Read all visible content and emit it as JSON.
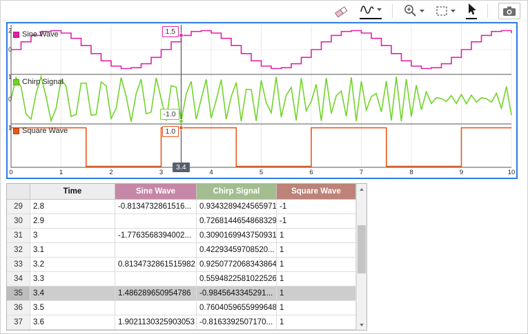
{
  "toolbar": {
    "buttons": [
      {
        "icon": "eraser-icon",
        "label": "Erase"
      },
      {
        "icon": "signal-trace-icon",
        "label": "Signal tool",
        "has_dropdown": true,
        "underlined": true
      },
      {
        "icon": "zoom-in-icon",
        "label": "Zoom",
        "has_dropdown": true
      },
      {
        "icon": "marquee-select-icon",
        "label": "Select region",
        "has_dropdown": true
      },
      {
        "icon": "pointer-icon",
        "label": "Pointer",
        "underlined": true
      },
      {
        "icon": "camera-icon",
        "label": "Snapshot"
      }
    ]
  },
  "plot": {
    "border_color": "#2f7ae5",
    "x_ticks": [
      0,
      1,
      2,
      3,
      4,
      5,
      6,
      7,
      8,
      9,
      10
    ],
    "cursor": {
      "time": 3.4,
      "time_label": "3.4",
      "readouts": [
        {
          "signal": "Sine Wave",
          "label": "1.5"
        },
        {
          "signal": "Chirp Signal",
          "label": "-1.0"
        },
        {
          "signal": "Square Wave",
          "label": "1.0"
        }
      ]
    }
  },
  "chart_data": [
    {
      "type": "line",
      "title": "Sine Wave",
      "color": "#e320a5",
      "line_style": "stair",
      "x_range": [
        0,
        10
      ],
      "y_range": [
        -2.6,
        2.6
      ],
      "y_ticks": [
        2,
        0
      ],
      "signal_model": {
        "kind": "sine",
        "amplitude": 2,
        "period": 3,
        "sample_time": 0.2
      },
      "cursor_value": 1.486289650954786
    },
    {
      "type": "line",
      "title": "Chirp Signal",
      "color": "#72d32a",
      "line_style": "linear",
      "x_range": [
        0,
        10
      ],
      "y_range": [
        -1.1,
        1.1
      ],
      "y_ticks": [
        1,
        0
      ],
      "signal_model": {
        "kind": "chirp",
        "f0": 2,
        "k": 0.3325,
        "sample_time": 0.1
      },
      "cursor_value": -0.9845643345291
    },
    {
      "type": "line",
      "title": "Square Wave",
      "color": "#e8571c",
      "line_style": "square",
      "x_range": [
        0,
        10
      ],
      "y_range": [
        -1.05,
        1.2
      ],
      "y_ticks": [
        1
      ],
      "signal_model": {
        "kind": "square",
        "period": 3,
        "amplitude": 1,
        "start_level": 1
      },
      "cursor_value": 1
    }
  ],
  "table": {
    "headers": [
      {
        "label": "",
        "bg": "#e9e9e9",
        "fg": "#333333"
      },
      {
        "label": "Time",
        "bg": "#ededed",
        "fg": "#111111"
      },
      {
        "label": "Sine Wave",
        "bg": "#c687a6",
        "fg": "#ffffff"
      },
      {
        "label": "Chirp Signal",
        "bg": "#a3bd90",
        "fg": "#ffffff"
      },
      {
        "label": "Square Wave",
        "bg": "#bd8378",
        "fg": "#ffffff"
      }
    ],
    "rows": [
      {
        "n": "29",
        "time": "2.8",
        "sine": "-0.8134732861516...",
        "chirp": "0.9343289424565971",
        "square": "-1",
        "selected": false
      },
      {
        "n": "30",
        "time": "2.9",
        "sine": "",
        "chirp": "0.7268144654868329",
        "square": "-1",
        "selected": false
      },
      {
        "n": "31",
        "time": "3",
        "sine": "-1.7763568394002...",
        "chirp": "0.3090169943750931",
        "square": "1",
        "selected": false
      },
      {
        "n": "32",
        "time": "3.1",
        "sine": "",
        "chirp": "0.42293459708520...",
        "square": "1",
        "selected": false
      },
      {
        "n": "33",
        "time": "3.2",
        "sine": "0.8134732861515982",
        "chirp": "0.9250772068343864",
        "square": "1",
        "selected": false
      },
      {
        "n": "34",
        "time": "3.3",
        "sine": "",
        "chirp": "0.5594822581022526",
        "square": "1",
        "selected": false
      },
      {
        "n": "35",
        "time": "3.4",
        "sine": "1.486289650954786",
        "chirp": "-0.9845643345291...",
        "square": "1",
        "selected": true
      },
      {
        "n": "36",
        "time": "3.5",
        "sine": "",
        "chirp": "0.7604059655999648",
        "square": "1",
        "selected": false
      },
      {
        "n": "37",
        "time": "3.6",
        "sine": "1.9021130325903053",
        "chirp": "-0.8163392507170...",
        "square": "1",
        "selected": false
      }
    ]
  }
}
